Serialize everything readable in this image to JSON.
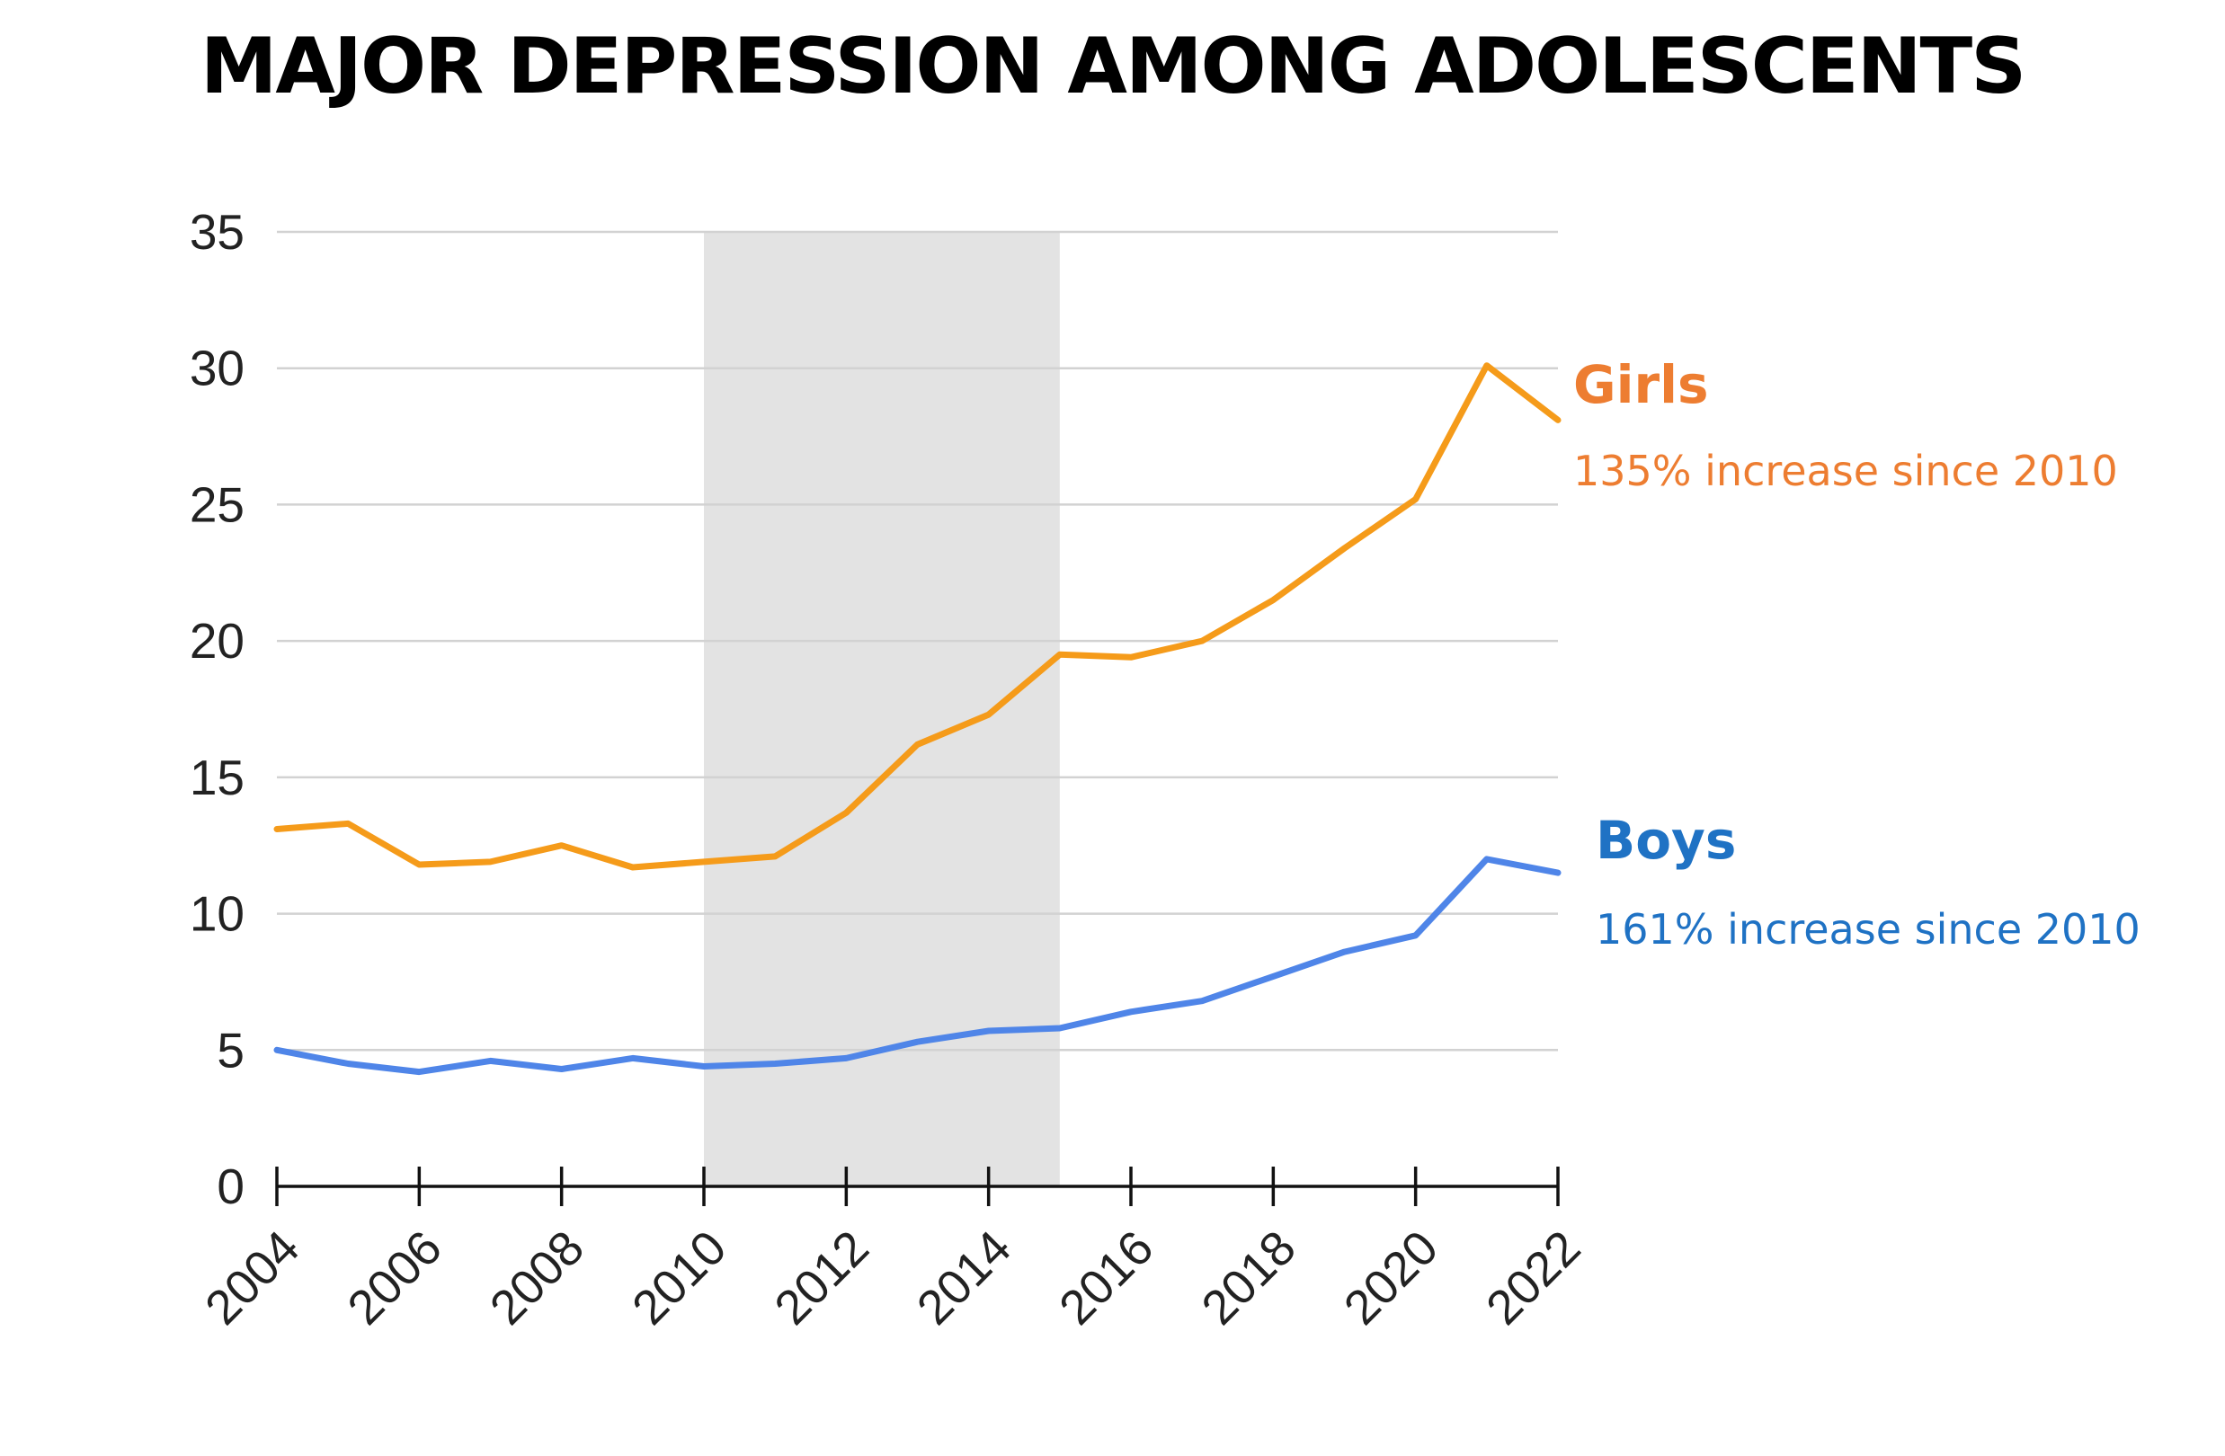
{
  "chart_data": {
    "type": "line",
    "title": "MAJOR DEPRESSION AMONG ADOLESCENTS",
    "xlabel": "",
    "ylabel": "",
    "xlim": [
      2004,
      2022
    ],
    "ylim": [
      0,
      35
    ],
    "yticks": [
      "0",
      "5",
      "10",
      "15",
      "20",
      "25",
      "30",
      "35"
    ],
    "xticks": [
      "2004",
      "2006",
      "2008",
      "2010",
      "2012",
      "2014",
      "2016",
      "2018",
      "2020",
      "2022"
    ],
    "shaded_range": [
      2010,
      2015
    ],
    "x": [
      2004,
      2005,
      2006,
      2007,
      2008,
      2009,
      2010,
      2011,
      2012,
      2013,
      2014,
      2015,
      2016,
      2017,
      2018,
      2019,
      2020,
      2021,
      2022
    ],
    "series": [
      {
        "name": "Girls",
        "note": "135% increase since 2010",
        "color": "#f59b1a",
        "label_color": "#ed7d31",
        "values": [
          13.1,
          13.3,
          11.8,
          11.9,
          12.5,
          11.7,
          11.9,
          12.1,
          13.7,
          16.2,
          17.3,
          19.5,
          19.4,
          20.0,
          21.5,
          23.4,
          25.2,
          30.1,
          28.1
        ]
      },
      {
        "name": "Boys",
        "note": "161% increase since 2010",
        "color": "#4f85e8",
        "label_color": "#1f72c4",
        "values": [
          5.0,
          4.5,
          4.2,
          4.6,
          4.3,
          4.7,
          4.4,
          4.5,
          4.7,
          5.3,
          5.7,
          5.8,
          6.4,
          6.8,
          7.7,
          8.6,
          9.2,
          12.0,
          11.5
        ]
      }
    ]
  }
}
